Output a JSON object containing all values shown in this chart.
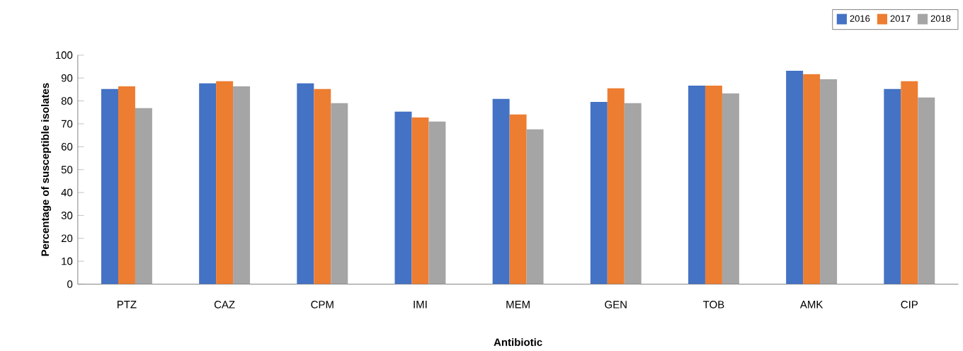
{
  "chart_data": {
    "type": "bar",
    "xlabel": "Antibiotic",
    "ylabel": "Percentage of susceptible isolates",
    "categories": [
      "PTZ",
      "CAZ",
      "CPM",
      "IMI",
      "MEM",
      "GEN",
      "TOB",
      "AMK",
      "CIP"
    ],
    "series": [
      {
        "name": "2016",
        "color": "#4472c4",
        "values": [
          85.2,
          87.7,
          87.7,
          75.3,
          80.9,
          79.6,
          86.7,
          93.2,
          85.2
        ]
      },
      {
        "name": "2017",
        "color": "#ed7d31",
        "values": [
          86.4,
          88.6,
          85.2,
          72.8,
          74.1,
          85.5,
          86.7,
          91.7,
          88.6
        ]
      },
      {
        "name": "2018",
        "color": "#a5a5a5",
        "values": [
          76.9,
          86.4,
          79.0,
          71.0,
          67.6,
          79.0,
          83.3,
          89.5,
          81.5
        ]
      }
    ],
    "ylim": [
      0,
      100
    ],
    "yticks": [
      0,
      10,
      20,
      30,
      40,
      50,
      60,
      70,
      80,
      90,
      100
    ],
    "grid": false,
    "legend": "top right"
  }
}
